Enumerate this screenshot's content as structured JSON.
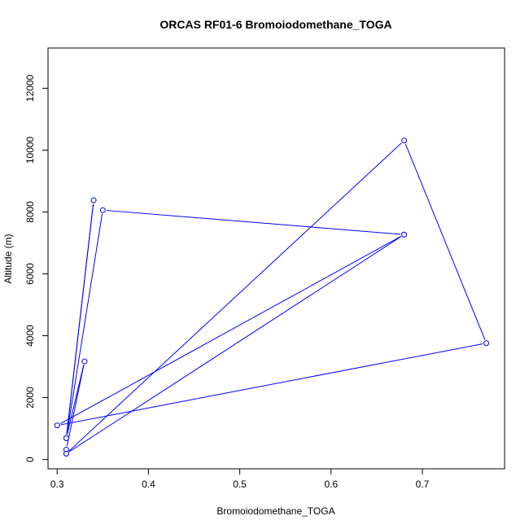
{
  "chart_data": {
    "type": "line",
    "title": "ORCAS RF01-6 Bromoiodomethane_TOGA",
    "xlabel": "Bromoiodomethane_TOGA",
    "ylabel": "Altitude (m)",
    "xlim": [
      0.29,
      0.79
    ],
    "ylim": [
      -300,
      13300
    ],
    "x_ticks": [
      0.3,
      0.4,
      0.5,
      0.6,
      0.7
    ],
    "x_tick_labels": [
      "0.3",
      "0.4",
      "0.5",
      "0.6",
      "0.7"
    ],
    "y_ticks": [
      0,
      2000,
      4000,
      6000,
      8000,
      10000,
      12000
    ],
    "y_tick_labels": [
      "0",
      "2000",
      "4000",
      "6000",
      "8000",
      "10000",
      "12000"
    ],
    "grid": false,
    "series": [
      {
        "color": "#0000ff",
        "marker": "open-circle",
        "x": [
          0.31,
          0.31,
          0.33,
          0.31,
          0.34,
          0.31,
          0.35,
          0.68,
          0.31,
          0.68,
          0.77,
          0.3,
          0.68
        ],
        "y": [
          190,
          320,
          3170,
          690,
          8380,
          690,
          8060,
          7270,
          190,
          10310,
          3760,
          1100,
          7270
        ]
      }
    ]
  }
}
